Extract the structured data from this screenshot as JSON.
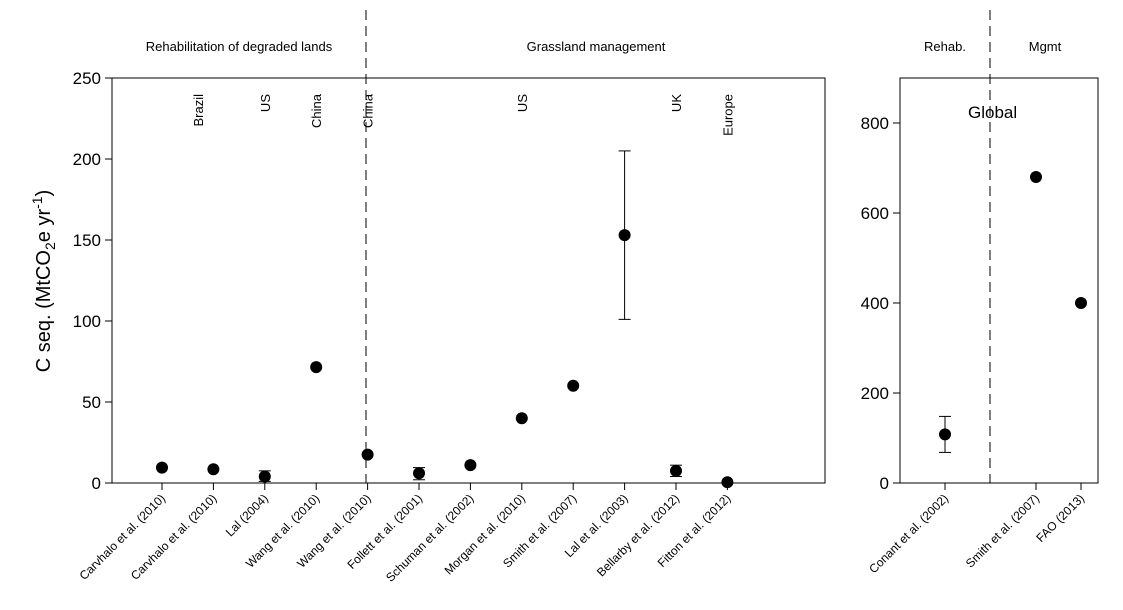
{
  "chart_data": [
    {
      "type": "scatter",
      "ylabel": "C seq. (MtCO2e yr-1)",
      "ylabel_parts": {
        "main": "C seq. (MtCO",
        "sub": "2",
        "mid": "e yr",
        "sup": "-1",
        "end": ")"
      },
      "ylim": [
        0,
        250
      ],
      "yticks": [
        "0",
        "50",
        "100",
        "150",
        "200",
        "250"
      ],
      "error_bars": true,
      "sections": [
        {
          "label": "Rehabilitation of degraded lands",
          "start": 0,
          "end": 4
        },
        {
          "label": "Grassland management",
          "start": 4,
          "end": 12
        }
      ],
      "regions": [
        {
          "label": "Brazil",
          "at": 0.7
        },
        {
          "label": "US",
          "at": 2.0
        },
        {
          "label": "China",
          "at": 3.0
        },
        {
          "label": "China",
          "at": 4.0
        },
        {
          "label": "US",
          "at": 7.0
        },
        {
          "label": "UK",
          "at": 10.0
        },
        {
          "label": "Europe",
          "at": 11.0
        }
      ],
      "categories": [
        "Carvhalo et al. (2010)",
        "Carvhalo et al. (2010)",
        "Lal (2004)",
        "Wang et al. (2010)",
        "Wang et al. (2010)",
        "Follett et al. (2001)",
        "Schuman et al. (2002)",
        "Morgan et al. (2010)",
        "Smith et al. (2007)",
        "Lal et al. (2003)",
        "Bellarby et al. (2012)",
        "Fitton et al. (2012)"
      ],
      "values": [
        9.5,
        8.5,
        4,
        71.5,
        17.5,
        6,
        11,
        40,
        60,
        153,
        7.5,
        0.5
      ],
      "error_low": [
        null,
        null,
        1,
        null,
        null,
        2,
        null,
        null,
        null,
        101,
        4,
        null
      ],
      "error_high": [
        null,
        null,
        7.5,
        null,
        null,
        9.5,
        null,
        null,
        null,
        205,
        11,
        null
      ]
    },
    {
      "type": "scatter",
      "ylim": [
        0,
        900
      ],
      "yticks": [
        "0",
        "200",
        "400",
        "600",
        "800"
      ],
      "error_bars": true,
      "sections": [
        {
          "label": "Rehab.",
          "start": 0,
          "end": 1
        },
        {
          "label": "Mgmt",
          "start": 1,
          "end": 3
        }
      ],
      "annotation": "Global",
      "categories": [
        "Conant et al. (2002)",
        "Smith et al. (2007)",
        "FAO (2013)"
      ],
      "values": [
        108,
        680,
        400
      ],
      "error_low": [
        68,
        null,
        null
      ],
      "error_high": [
        148,
        null,
        null
      ]
    }
  ]
}
